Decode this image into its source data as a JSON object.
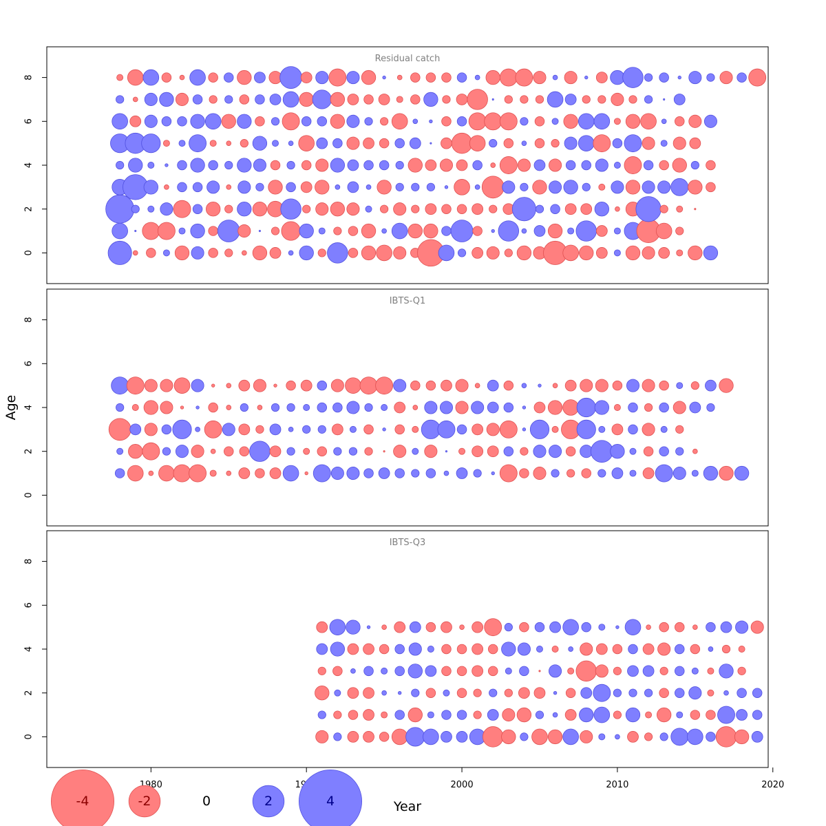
{
  "figure": {
    "ylabel": "Age",
    "xlabel": "Year",
    "colors": {
      "negative": "#ff7f7f",
      "negative_stroke": "#e05050",
      "positive": "#7f7fff",
      "positive_stroke": "#5050e0",
      "panel_title": "#808080"
    }
  },
  "chart_data": [
    {
      "type": "scatter",
      "title": "Residual catch",
      "xlabel": "Year",
      "ylabel": "Age",
      "xlim": [
        1973.3,
        2019.7
      ],
      "ylim": [
        -1.4,
        9.4
      ],
      "xticks": [
        1980,
        1990,
        2000,
        2010,
        2020
      ],
      "yticks": [
        0,
        2,
        4,
        6,
        8
      ],
      "start_year": 1978,
      "ages": [
        0,
        1,
        2,
        3,
        4,
        5,
        6,
        7,
        8
      ],
      "residuals": [
        [
          1.5,
          -0.3,
          -0.6,
          0.4,
          -0.9,
          0.8,
          -0.6,
          -0.5,
          -0.3,
          -0.9,
          -0.7,
          0.3,
          0.9,
          -0.5,
          1.3,
          -0.6,
          -0.9,
          -1.0,
          -0.8,
          -0.6,
          -1.7,
          1.0,
          0.5,
          -0.7,
          -0.8,
          -0.5,
          -0.9,
          -0.8,
          -1.5,
          -1.0,
          -0.9,
          -0.7,
          0.4,
          -0.9,
          -0.8,
          -0.7,
          -0.4,
          -0.9,
          0.9
        ],
        [
          1.0,
          0.1,
          -1.1,
          -1.1,
          0.4,
          0.9,
          -0.6,
          1.4,
          -0.8,
          0.1,
          -0.5,
          -1.2,
          0.9,
          0.4,
          -0.5,
          -0.6,
          -0.9,
          0.3,
          1.0,
          -0.9,
          -0.9,
          0.6,
          1.4,
          -0.6,
          0.2,
          1.3,
          0.3,
          0.7,
          -0.9,
          0.4,
          1.3,
          -0.7,
          0.4,
          1.1,
          -1.5,
          -1.0,
          -0.5
        ],
        [
          1.8,
          0.5,
          0.4,
          0.8,
          -1.1,
          0.6,
          -0.9,
          -0.5,
          0.9,
          -0.9,
          -1.0,
          1.3,
          -0.5,
          -0.8,
          -0.9,
          -0.8,
          0.4,
          -0.5,
          -0.8,
          -0.5,
          -0.7,
          -0.6,
          -0.6,
          -0.7,
          -0.5,
          -0.7,
          1.5,
          0.5,
          0.6,
          -0.7,
          -0.7,
          0.9,
          -0.3,
          -0.9,
          1.6,
          -0.5,
          -0.4,
          -0.1
        ],
        [
          1.0,
          1.6,
          0.9,
          -0.3,
          0.6,
          0.6,
          0.8,
          -0.3,
          0.8,
          0.5,
          -0.9,
          0.6,
          -0.7,
          -0.9,
          0.3,
          0.7,
          0.3,
          -0.9,
          0.5,
          0.5,
          0.5,
          0.2,
          -1.0,
          0.3,
          -1.4,
          0.8,
          0.5,
          -0.9,
          0.8,
          0.9,
          0.5,
          -0.4,
          0.8,
          -0.9,
          0.8,
          0.8,
          1.1,
          -0.9,
          -0.6
        ],
        [
          0.5,
          0.9,
          0.4,
          0.2,
          0.6,
          0.9,
          0.6,
          0.5,
          0.9,
          0.8,
          -0.6,
          0.5,
          -0.6,
          -0.8,
          0.9,
          0.7,
          0.6,
          0.6,
          0.5,
          -0.9,
          -0.7,
          -0.8,
          -0.7,
          0.6,
          -0.3,
          -1.1,
          -0.8,
          0.7,
          -0.8,
          0.6,
          0.6,
          0.8,
          0.4,
          -1.1,
          0.6,
          -0.6,
          -0.9,
          0.5,
          -0.6
        ],
        [
          1.2,
          1.3,
          1.2,
          -0.4,
          0.4,
          1.1,
          -0.4,
          -0.3,
          -0.5,
          0.9,
          0.4,
          0.3,
          -1.0,
          0.7,
          0.6,
          -0.8,
          -0.7,
          -0.6,
          0.6,
          0.7,
          0.1,
          -0.7,
          -1.3,
          -1.0,
          0.5,
          -0.6,
          0.3,
          -0.6,
          -0.5,
          0.8,
          1.0,
          -1.1,
          0.6,
          1.1,
          -0.8,
          0.4,
          -0.8,
          -0.7
        ],
        [
          1.0,
          -0.7,
          0.8,
          0.6,
          0.6,
          0.9,
          1.0,
          -0.9,
          0.9,
          -0.6,
          0.5,
          -1.1,
          0.6,
          0.6,
          -0.9,
          0.8,
          0.5,
          -0.5,
          -1.0,
          0.3,
          0.2,
          -0.6,
          0.6,
          -1.1,
          -1.1,
          -1.1,
          0.5,
          -0.6,
          0.4,
          -0.9,
          1.0,
          1.0,
          -0.4,
          -0.9,
          -1.0,
          0.3,
          -0.6,
          -0.8,
          0.8
        ],
        [
          0.5,
          -0.3,
          0.8,
          0.9,
          -0.8,
          0.6,
          -0.5,
          0.5,
          -0.6,
          0.6,
          0.7,
          1.0,
          -0.9,
          1.2,
          -0.9,
          -0.7,
          -0.6,
          -0.7,
          -0.4,
          -0.6,
          0.9,
          -0.5,
          -0.7,
          -1.3,
          0.1,
          -0.5,
          -0.5,
          -0.5,
          1.0,
          0.7,
          -0.5,
          -0.5,
          -0.8,
          -0.5,
          0.5,
          0.1,
          0.7
        ],
        [
          -0.4,
          -1.0,
          1.0,
          -0.6,
          -0.3,
          1.0,
          -0.6,
          0.6,
          -0.9,
          0.7,
          -0.8,
          1.4,
          -0.7,
          0.8,
          -1.1,
          0.8,
          -0.9,
          0.2,
          -0.3,
          -0.6,
          -0.6,
          -0.6,
          0.6,
          0.3,
          -0.9,
          -1.1,
          -1.1,
          -0.8,
          0.3,
          -0.8,
          0.2,
          -0.7,
          0.9,
          1.3,
          0.5,
          0.6,
          0.2,
          0.8,
          0.5,
          -0.8,
          0.6,
          -1.1
        ]
      ]
    },
    {
      "type": "scatter",
      "title": "IBTS-Q1",
      "xlabel": "Year",
      "ylabel": "Age",
      "xlim": [
        1973.3,
        2019.7
      ],
      "ylim": [
        -1.4,
        9.4
      ],
      "xticks": [
        1980,
        1990,
        2000,
        2010,
        2020
      ],
      "yticks": [
        0,
        2,
        4,
        6,
        8
      ],
      "start_year": 1978,
      "ages": [
        1,
        2,
        3,
        4,
        5
      ],
      "residuals": [
        [
          0.6,
          -1.0,
          -0.3,
          -1.0,
          -1.1,
          -1.1,
          -0.4,
          -0.3,
          -0.7,
          -0.6,
          -0.7,
          1.0,
          -0.2,
          1.1,
          0.8,
          0.8,
          0.6,
          0.7,
          0.6,
          0.5,
          0.6,
          0.3,
          0.7,
          0.5,
          0.2,
          -1.1,
          -0.6,
          -0.8,
          0.5,
          -0.5,
          -0.6,
          0.5,
          0.7,
          0.4,
          -0.7,
          1.1,
          0.8,
          0.4,
          0.9,
          -0.9,
          0.9
        ],
        [
          0.4,
          -0.9,
          -1.1,
          0.5,
          0.8,
          -0.8,
          -0.3,
          -0.6,
          -0.6,
          1.3,
          -0.7,
          0.5,
          -0.4,
          -0.6,
          0.5,
          0.5,
          -0.5,
          -0.1,
          -0.8,
          0.4,
          -0.8,
          0.1,
          -0.4,
          -0.7,
          -0.7,
          0.6,
          -0.5,
          0.8,
          0.8,
          -0.6,
          0.8,
          1.4,
          0.9,
          0.4,
          -0.6,
          0.6,
          0.5,
          -0.3
        ],
        [
          -1.4,
          0.7,
          -0.8,
          0.6,
          1.2,
          0.3,
          -1.1,
          0.8,
          -0.7,
          -0.5,
          0.7,
          0.3,
          0.5,
          0.5,
          -0.7,
          0.4,
          -0.6,
          0.2,
          -0.6,
          -0.4,
          1.2,
          1.1,
          0.6,
          -0.7,
          -0.8,
          -1.1,
          0.2,
          1.2,
          -0.4,
          -1.2,
          1.2,
          0.4,
          -0.7,
          0.6,
          -0.8,
          0.4,
          -0.5
        ],
        [
          0.5,
          -0.4,
          -0.9,
          -0.8,
          -0.2,
          0.2,
          -0.6,
          -0.3,
          0.5,
          -0.3,
          0.5,
          0.5,
          0.4,
          0.6,
          0.6,
          0.8,
          0.5,
          0.4,
          -0.7,
          -0.3,
          0.8,
          0.8,
          -0.8,
          0.8,
          0.7,
          0.6,
          0.2,
          -0.7,
          -0.9,
          -1.0,
          1.2,
          0.9,
          -0.4,
          0.6,
          -0.5,
          0.6,
          -0.8,
          0.7,
          0.5
        ],
        [
          1.1,
          -1.1,
          -0.8,
          -0.8,
          -1.0,
          0.8,
          -0.2,
          -0.3,
          -0.7,
          -0.8,
          -0.2,
          -0.6,
          -0.7,
          0.6,
          -0.8,
          -1.0,
          -1.1,
          -1.1,
          0.8,
          -0.6,
          -0.6,
          -0.7,
          -0.8,
          -0.3,
          0.7,
          -0.6,
          0.3,
          0.2,
          -0.3,
          -0.7,
          -0.8,
          -0.8,
          -0.6,
          0.8,
          -0.8,
          -0.6,
          0.4,
          -0.5,
          0.7,
          -0.9
        ]
      ]
    },
    {
      "type": "scatter",
      "title": "IBTS-Q3",
      "xlabel": "Year",
      "ylabel": "Age",
      "xlim": [
        1973.3,
        2019.7
      ],
      "ylim": [
        -1.4,
        9.4
      ],
      "xticks": [
        1980,
        1990,
        2000,
        2010,
        2020
      ],
      "yticks": [
        0,
        2,
        4,
        6,
        8
      ],
      "start_year": 1991,
      "ages": [
        0,
        1,
        2,
        3,
        4,
        5
      ],
      "residuals": [
        [
          -0.8,
          0.5,
          -0.7,
          -0.7,
          -0.6,
          -1.0,
          1.2,
          1.0,
          0.7,
          0.7,
          1.0,
          -1.3,
          -0.9,
          0.5,
          -1.0,
          -0.9,
          1.0,
          -0.8,
          0.4,
          0.3,
          -0.7,
          -0.5,
          0.5,
          1.1,
          1.0,
          0.6,
          -1.3,
          -0.9,
          0.7
        ],
        [
          0.5,
          -0.5,
          -0.6,
          -0.7,
          -0.4,
          0.6,
          -0.9,
          0.4,
          0.6,
          0.6,
          -0.5,
          0.7,
          -0.8,
          -0.9,
          0.5,
          0.3,
          -0.7,
          0.9,
          1.0,
          -0.5,
          0.9,
          -0.4,
          -0.9,
          0.4,
          -0.6,
          -0.6,
          1.1,
          0.7,
          0.6
        ],
        [
          -0.9,
          0.4,
          -0.7,
          -0.7,
          0.3,
          0.2,
          0.5,
          -0.6,
          0.4,
          -0.6,
          -0.5,
          0.5,
          -0.5,
          -0.7,
          -0.7,
          0.2,
          -0.6,
          0.7,
          1.1,
          0.5,
          0.5,
          0.5,
          -0.6,
          0.6,
          0.8,
          -0.4,
          0.3,
          0.6,
          0.6
        ],
        [
          -0.5,
          -0.6,
          0.3,
          0.6,
          0.4,
          0.6,
          0.9,
          0.7,
          -0.6,
          -0.6,
          -0.7,
          -0.6,
          0.4,
          0.6,
          -0.1,
          0.8,
          -0.4,
          -1.3,
          -0.8,
          -0.5,
          0.7,
          0.7,
          -0.5,
          0.6,
          0.4,
          -0.4,
          0.9,
          -0.5
        ],
        [
          0.7,
          0.9,
          -0.7,
          -0.7,
          -0.6,
          0.6,
          0.8,
          0.4,
          -0.6,
          -0.6,
          -0.7,
          -0.6,
          0.9,
          0.8,
          0.4,
          -0.4,
          0.3,
          -0.8,
          -0.7,
          -0.6,
          0.6,
          -0.7,
          -0.8,
          0.6,
          -0.6,
          0.3,
          -0.5,
          -0.4
        ],
        [
          -0.7,
          1.0,
          0.9,
          0.2,
          -0.3,
          -0.7,
          0.7,
          -0.6,
          -0.7,
          -0.3,
          -0.7,
          -1.1,
          0.5,
          -0.6,
          0.6,
          0.7,
          1.0,
          0.6,
          0.4,
          0.2,
          1.0,
          -0.3,
          -0.6,
          -0.6,
          -0.3,
          0.6,
          0.7,
          0.8,
          -0.8
        ]
      ]
    }
  ],
  "legend": {
    "entries": [
      {
        "value": -4,
        "label": "-4"
      },
      {
        "value": -2,
        "label": "-2"
      },
      {
        "value": 0,
        "label": "0"
      },
      {
        "value": 2,
        "label": "2"
      },
      {
        "value": 4,
        "label": "4"
      }
    ]
  }
}
